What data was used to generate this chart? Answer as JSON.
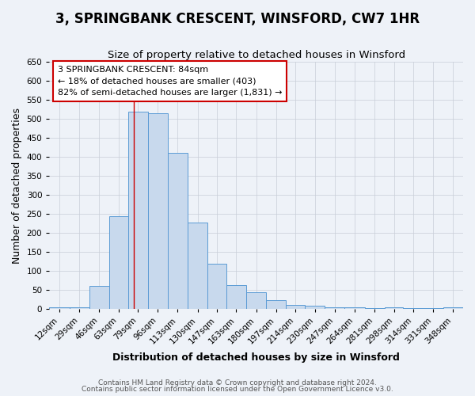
{
  "title": "3, SPRINGBANK CRESCENT, WINSFORD, CW7 1HR",
  "subtitle": "Size of property relative to detached houses in Winsford",
  "xlabel": "Distribution of detached houses by size in Winsford",
  "ylabel": "Number of detached properties",
  "bar_color": "#c8d9ed",
  "bar_edge_color": "#5b9bd5",
  "categories": [
    "12sqm",
    "29sqm",
    "46sqm",
    "63sqm",
    "79sqm",
    "96sqm",
    "113sqm",
    "130sqm",
    "147sqm",
    "163sqm",
    "180sqm",
    "197sqm",
    "214sqm",
    "230sqm",
    "247sqm",
    "264sqm",
    "281sqm",
    "298sqm",
    "314sqm",
    "331sqm",
    "348sqm"
  ],
  "values": [
    5,
    5,
    60,
    245,
    520,
    515,
    410,
    228,
    120,
    63,
    45,
    23,
    10,
    8,
    5,
    5,
    3,
    5,
    3,
    3,
    5
  ],
  "ylim": [
    0,
    650
  ],
  "yticks": [
    0,
    50,
    100,
    150,
    200,
    250,
    300,
    350,
    400,
    450,
    500,
    550,
    600,
    650
  ],
  "property_line_x": 84,
  "bin_edges": [
    12,
    29,
    46,
    63,
    79,
    96,
    113,
    130,
    147,
    163,
    180,
    197,
    214,
    230,
    247,
    264,
    281,
    298,
    314,
    331,
    348,
    365
  ],
  "annotation_title": "3 SPRINGBANK CRESCENT: 84sqm",
  "annotation_line1": "← 18% of detached houses are smaller (403)",
  "annotation_line2": "82% of semi-detached houses are larger (1,831) →",
  "annotation_box_color": "#ffffff",
  "annotation_box_edge_color": "#cc0000",
  "footer1": "Contains HM Land Registry data © Crown copyright and database right 2024.",
  "footer2": "Contains public sector information licensed under the Open Government Licence v3.0.",
  "bg_color": "#eef2f8",
  "grid_color": "#c8cdd8",
  "title_fontsize": 12,
  "subtitle_fontsize": 9.5,
  "axis_label_fontsize": 9,
  "tick_fontsize": 7.5,
  "footer_fontsize": 6.5,
  "annotation_fontsize": 8
}
